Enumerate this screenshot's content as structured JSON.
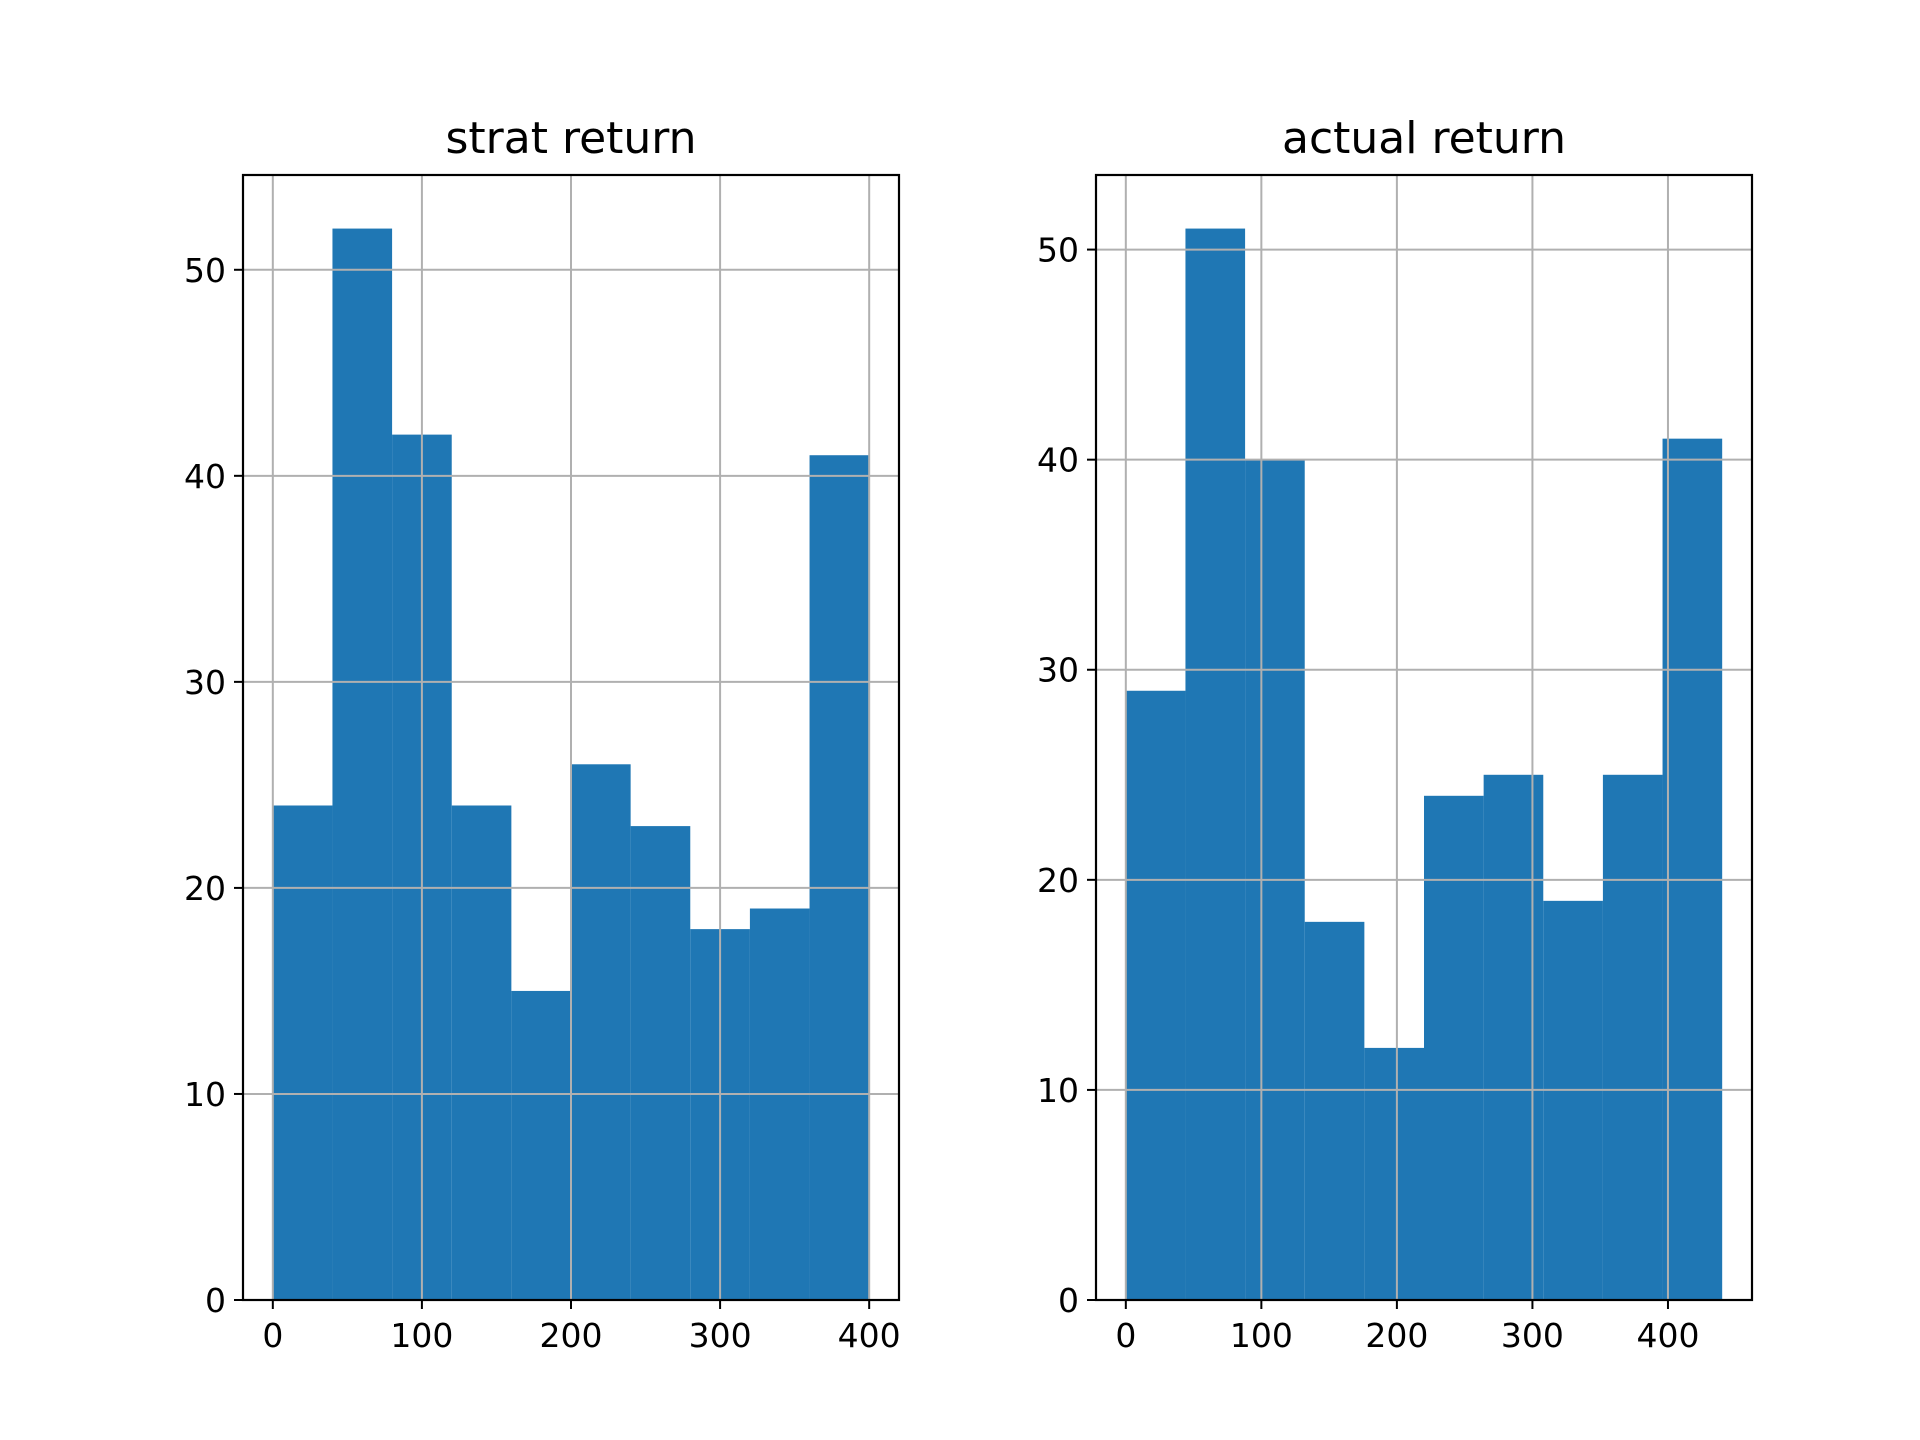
{
  "chart_data": [
    {
      "type": "bar",
      "title": "strat return",
      "bar_color": "#1f77b4",
      "grid": true,
      "bins": [
        {
          "x0": 0,
          "x1": 40,
          "count": 24
        },
        {
          "x0": 40,
          "x1": 80,
          "count": 52
        },
        {
          "x0": 80,
          "x1": 120,
          "count": 42
        },
        {
          "x0": 120,
          "x1": 160,
          "count": 24
        },
        {
          "x0": 160,
          "x1": 200,
          "count": 15
        },
        {
          "x0": 200,
          "x1": 240,
          "count": 26
        },
        {
          "x0": 240,
          "x1": 280,
          "count": 23
        },
        {
          "x0": 280,
          "x1": 320,
          "count": 18
        },
        {
          "x0": 320,
          "x1": 360,
          "count": 19
        },
        {
          "x0": 360,
          "x1": 400,
          "count": 41
        }
      ],
      "xlim": [
        -20,
        420
      ],
      "ylim": [
        0,
        54.6
      ],
      "xticks": [
        0,
        100,
        200,
        300,
        400
      ],
      "yticks": [
        0,
        10,
        20,
        30,
        40,
        50
      ]
    },
    {
      "type": "bar",
      "title": "actual return",
      "bar_color": "#1f77b4",
      "grid": true,
      "bins": [
        {
          "x0": 0,
          "x1": 44,
          "count": 29
        },
        {
          "x0": 44,
          "x1": 88,
          "count": 51
        },
        {
          "x0": 88,
          "x1": 132,
          "count": 40
        },
        {
          "x0": 132,
          "x1": 176,
          "count": 18
        },
        {
          "x0": 176,
          "x1": 220,
          "count": 12
        },
        {
          "x0": 220,
          "x1": 264,
          "count": 24
        },
        {
          "x0": 264,
          "x1": 308,
          "count": 25
        },
        {
          "x0": 308,
          "x1": 352,
          "count": 19
        },
        {
          "x0": 352,
          "x1": 396,
          "count": 25
        },
        {
          "x0": 396,
          "x1": 440,
          "count": 41
        }
      ],
      "xlim": [
        -22,
        462
      ],
      "ylim": [
        0,
        53.55
      ],
      "xticks": [
        0,
        100,
        200,
        300,
        400
      ],
      "yticks": [
        0,
        10,
        20,
        30,
        40,
        50
      ]
    }
  ]
}
